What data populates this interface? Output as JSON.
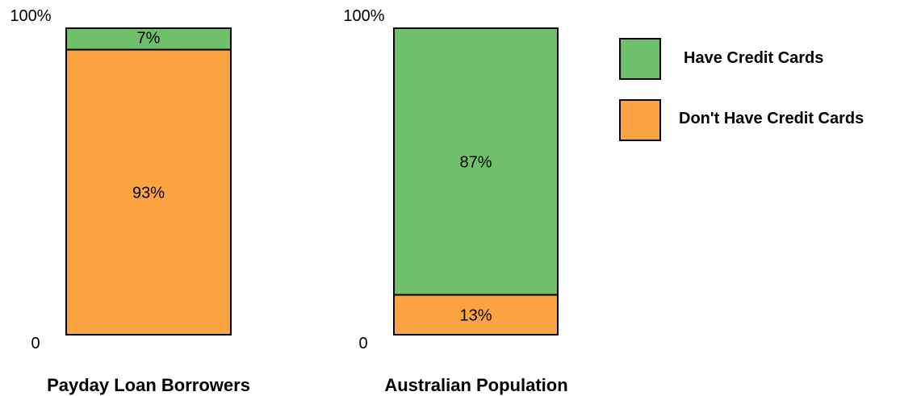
{
  "chart_data": {
    "type": "bar",
    "stacked": true,
    "percent_scale": true,
    "categories": [
      "Payday Loan Borrowers",
      "Australian Population"
    ],
    "series": [
      {
        "name": "Have Credit Cards",
        "color": "#70bf6b",
        "values": [
          7,
          87
        ],
        "labels": [
          "7%",
          "87%"
        ]
      },
      {
        "name": "Don't Have Credit Cards",
        "color": "#fba441",
        "values": [
          93,
          13
        ],
        "labels": [
          "93%",
          "13%"
        ]
      }
    ],
    "ylim": [
      0,
      100
    ],
    "ytick_labels": {
      "top": "100%",
      "bottom": "0"
    },
    "legend_position": "top-right",
    "grid": false
  }
}
